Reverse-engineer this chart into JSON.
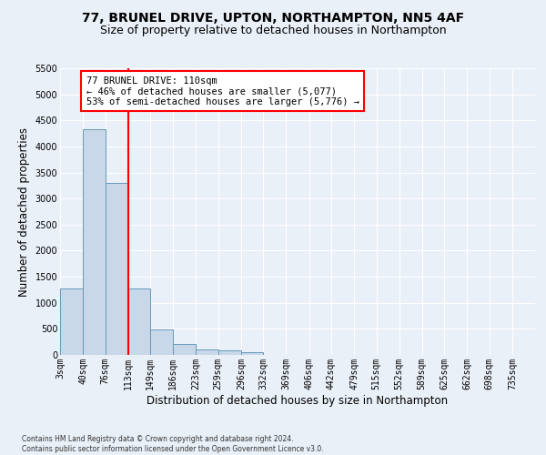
{
  "title": "77, BRUNEL DRIVE, UPTON, NORTHAMPTON, NN5 4AF",
  "subtitle": "Size of property relative to detached houses in Northampton",
  "xlabel": "Distribution of detached houses by size in Northampton",
  "ylabel": "Number of detached properties",
  "footnote": "Contains HM Land Registry data © Crown copyright and database right 2024.\nContains public sector information licensed under the Open Government Licence v3.0.",
  "bin_labels": [
    "3sqm",
    "40sqm",
    "76sqm",
    "113sqm",
    "149sqm",
    "186sqm",
    "223sqm",
    "259sqm",
    "296sqm",
    "332sqm",
    "369sqm",
    "406sqm",
    "442sqm",
    "479sqm",
    "515sqm",
    "552sqm",
    "589sqm",
    "625sqm",
    "662sqm",
    "698sqm",
    "735sqm"
  ],
  "bin_edges": [
    3,
    40,
    76,
    113,
    149,
    186,
    223,
    259,
    296,
    332,
    369,
    406,
    442,
    479,
    515,
    552,
    589,
    625,
    662,
    698,
    735
  ],
  "bar_heights": [
    1270,
    4330,
    3300,
    1280,
    490,
    210,
    100,
    80,
    60,
    0,
    0,
    0,
    0,
    0,
    0,
    0,
    0,
    0,
    0,
    0
  ],
  "bar_color": "#c8d8e8",
  "bar_edgecolor": "#6699bb",
  "vline_x": 113,
  "vline_color": "red",
  "annotation_text": "77 BRUNEL DRIVE: 110sqm\n← 46% of detached houses are smaller (5,077)\n53% of semi-detached houses are larger (5,776) →",
  "annotation_box_color": "white",
  "annotation_box_edgecolor": "red",
  "ylim": [
    0,
    5500
  ],
  "yticks": [
    0,
    500,
    1000,
    1500,
    2000,
    2500,
    3000,
    3500,
    4000,
    4500,
    5000,
    5500
  ],
  "bg_color": "#eaf0f8",
  "axes_bg_color": "#eaf0f8",
  "grid_color": "white",
  "title_fontsize": 10,
  "subtitle_fontsize": 9,
  "label_fontsize": 8.5,
  "tick_fontsize": 7,
  "annot_fontsize": 7.5
}
